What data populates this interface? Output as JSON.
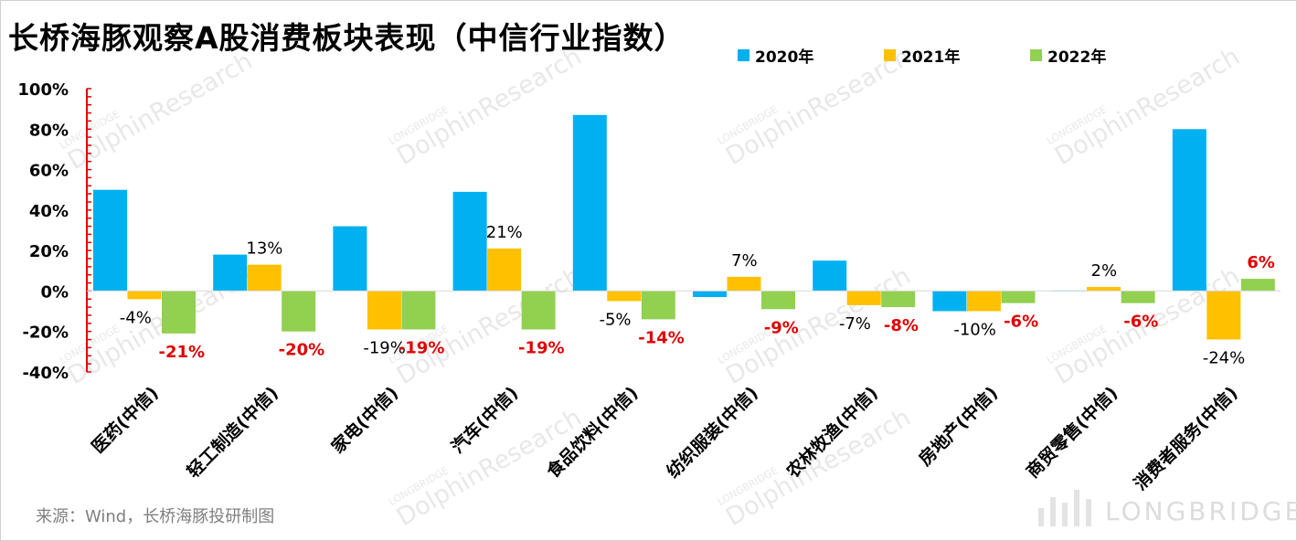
{
  "title": "长桥海豚观察A股消费板块表现（中信行业指数）",
  "source": "来源：Wind，长桥海豚投研制图",
  "watermark": {
    "brand": "LONGBRIDGE",
    "name": "DolphinResearch"
  },
  "chart_data": {
    "type": "bar",
    "title": "长桥海豚观察A股消费板块表现（中信行业指数）",
    "categories": [
      "医药(中信)",
      "轻工制造(中信)",
      "家电(中信)",
      "汽车(中信)",
      "食品饮料(中信)",
      "纺织服装(中信)",
      "农林牧渔(中信)",
      "房地产(中信)",
      "商贸零售(中信)",
      "消费者服务(中信)"
    ],
    "series": [
      {
        "name": "2020年",
        "color": "#00b0f0",
        "values": [
          50,
          18,
          32,
          49,
          87,
          -3,
          15,
          -10,
          0,
          80
        ],
        "labels": [
          "",
          "",
          "",
          "",
          "",
          "",
          "",
          "",
          "",
          ""
        ]
      },
      {
        "name": "2021年",
        "color": "#ffc000",
        "values": [
          -4,
          13,
          -19,
          21,
          -5,
          7,
          -7,
          -10,
          2,
          -24
        ],
        "labels": [
          "-4%",
          "13%",
          "-19%",
          "21%",
          "-5%",
          "7%",
          "-7%",
          "-10%",
          "2%",
          "-24%"
        ]
      },
      {
        "name": "2022年",
        "color": "#92d050",
        "values": [
          -21,
          -20,
          -19,
          -19,
          -14,
          -9,
          -8,
          -6,
          -6,
          6
        ],
        "labels": [
          "-21%",
          "-20%",
          "-19%",
          "-19%",
          "-14%",
          "-9%",
          "-8%",
          "-6%",
          "-6%",
          "6%"
        ]
      }
    ],
    "y_ticks": [
      "100%",
      "80%",
      "60%",
      "40%",
      "20%",
      "0%",
      "-20%",
      "-40%"
    ],
    "ylim": [
      -40,
      100
    ],
    "legend_position": "top-right",
    "grid": false,
    "label_colors": {
      "positive_2021": "#000000",
      "negative_2021": "#000000",
      "series_2022": "#e00000"
    },
    "axis_color": "#e00000"
  }
}
